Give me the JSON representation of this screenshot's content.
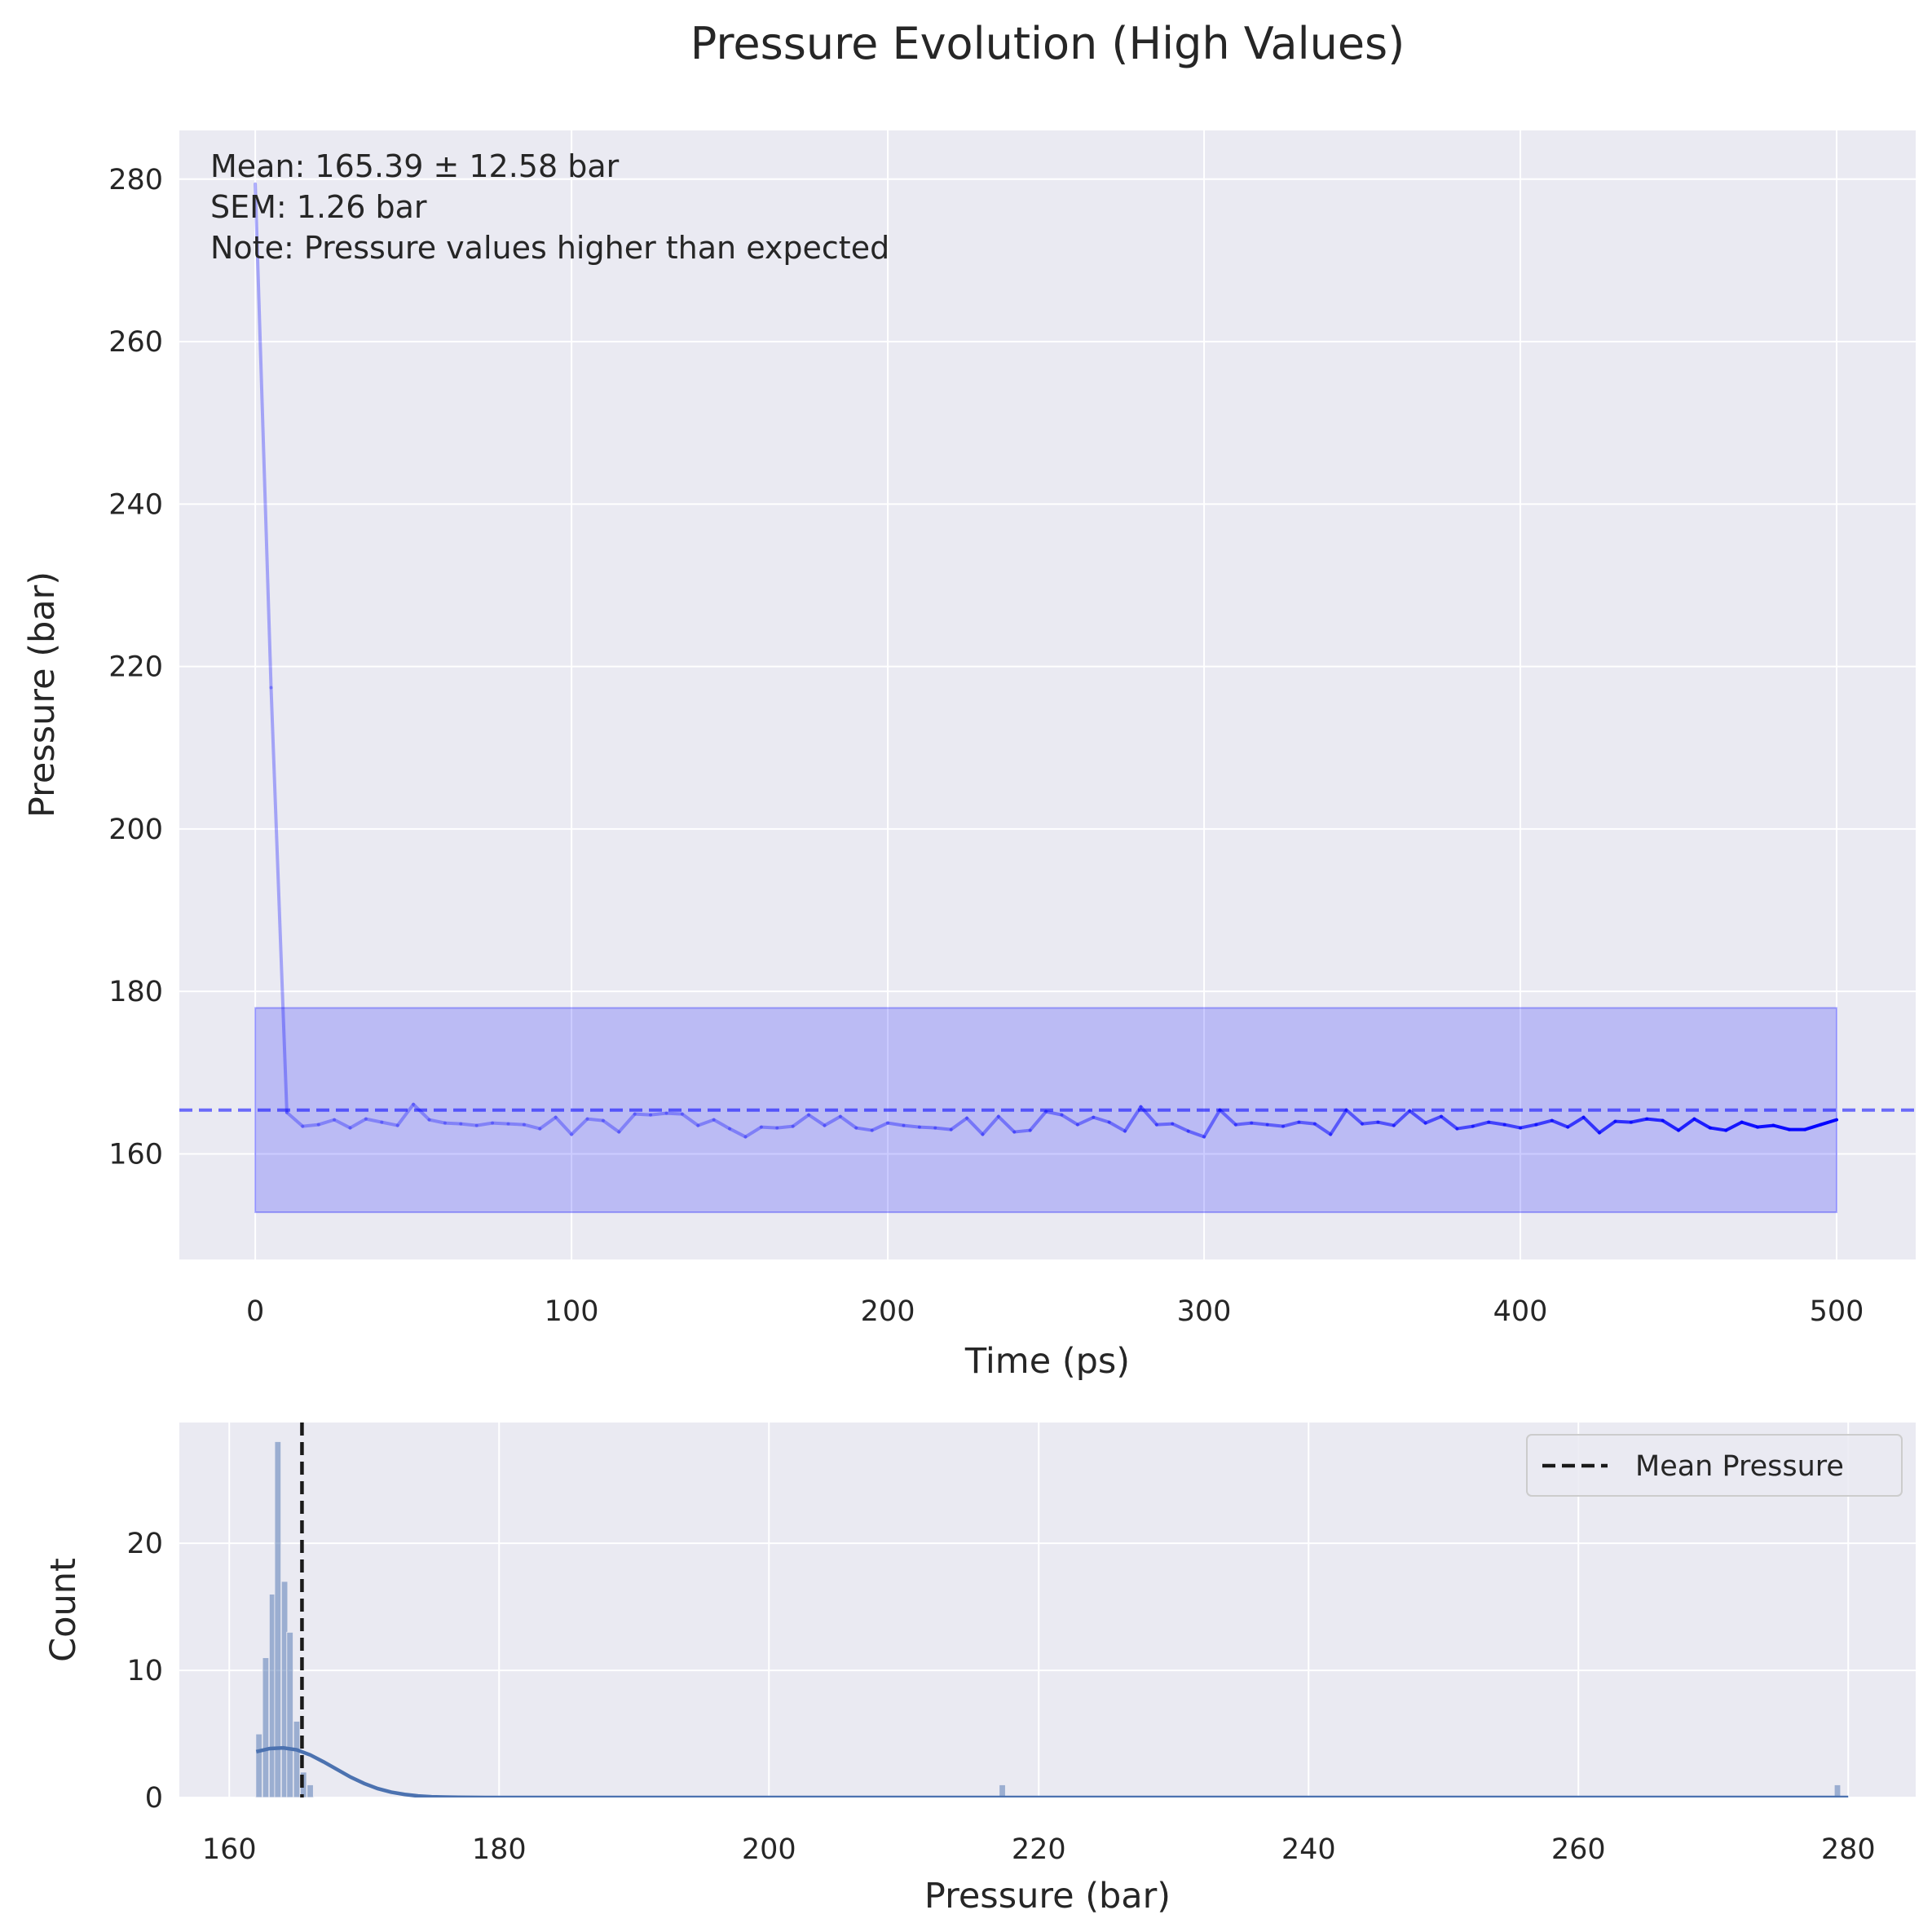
{
  "chart_data": [
    {
      "type": "line",
      "title": "Pressure Evolution (High Values)",
      "xlabel": "Time (ps)",
      "ylabel": "Pressure (bar)",
      "xlim": [
        -24,
        525
      ],
      "ylim": [
        147,
        286
      ],
      "xticks": [
        0,
        100,
        200,
        300,
        400,
        500
      ],
      "yticks": [
        160,
        180,
        200,
        220,
        240,
        260,
        280
      ],
      "grid": true,
      "series": [
        {
          "color": "#0000ff",
          "x": [
            0,
            5,
            10,
            15,
            20,
            25,
            30,
            35,
            40,
            45,
            50,
            55,
            60,
            65,
            70,
            75,
            80,
            85,
            90,
            95,
            100,
            105,
            110,
            115,
            120,
            125,
            130,
            135,
            140,
            145,
            150,
            155,
            160,
            165,
            170,
            175,
            180,
            185,
            190,
            195,
            200,
            205,
            210,
            215,
            220,
            225,
            230,
            235,
            240,
            245,
            250,
            255,
            260,
            265,
            270,
            275,
            280,
            285,
            290,
            295,
            300,
            305,
            310,
            315,
            320,
            325,
            330,
            335,
            340,
            345,
            350,
            355,
            360,
            365,
            370,
            375,
            380,
            385,
            390,
            395,
            400,
            405,
            410,
            415,
            420,
            425,
            430,
            435,
            440,
            445,
            450,
            455,
            460,
            465,
            470,
            475,
            480,
            485,
            490,
            495,
            500
          ],
          "y": [
            279.4,
            217.4,
            165.1,
            163.4,
            163.6,
            164.2,
            163.2,
            164.3,
            163.9,
            163.5,
            166.1,
            164.2,
            163.8,
            163.7,
            163.5,
            163.8,
            163.7,
            163.6,
            163.1,
            164.5,
            162.4,
            164.3,
            164.1,
            162.7,
            164.9,
            164.8,
            165.0,
            164.9,
            163.5,
            164.2,
            163.1,
            162.1,
            163.3,
            163.2,
            163.4,
            164.8,
            163.5,
            164.6,
            163.2,
            162.9,
            163.8,
            163.5,
            163.3,
            163.2,
            163.0,
            164.4,
            162.4,
            164.6,
            162.7,
            162.9,
            165.2,
            164.8,
            163.6,
            164.5,
            163.9,
            162.8,
            165.8,
            163.6,
            163.7,
            162.8,
            162.1,
            165.4,
            163.6,
            163.8,
            163.6,
            163.4,
            163.9,
            163.7,
            162.4,
            165.4,
            163.7,
            163.9,
            163.5,
            165.3,
            163.8,
            164.6,
            163.1,
            163.4,
            163.9,
            163.6,
            163.2,
            163.6,
            164.1,
            163.3,
            164.5,
            162.6,
            164.0,
            163.9,
            164.3,
            164.1,
            162.9,
            164.3,
            163.2,
            162.9,
            163.9,
            163.3,
            163.5,
            163.0,
            163.0,
            163.6,
            164.2
          ]
        }
      ],
      "mean_line": 165.39,
      "std_band": [
        152.81,
        177.97
      ],
      "annotations": [
        "Mean: 165.39 ± 12.58 bar",
        "SEM: 1.26 bar",
        "Note: Pressure values higher than expected"
      ]
    },
    {
      "type": "bar",
      "xlabel": "Pressure (bar)",
      "ylabel": "Count",
      "xlim": [
        156.3,
        285
      ],
      "ylim": [
        0,
        29.5
      ],
      "xticks": [
        160,
        180,
        200,
        220,
        240,
        260,
        280
      ],
      "yticks": [
        0,
        10,
        20
      ],
      "grid": true,
      "bar_color": "#4c72b0",
      "bin_width": 0.47,
      "bin_centers": [
        162.2,
        162.7,
        163.2,
        163.6,
        164.1,
        164.5,
        165.0,
        165.5,
        166.0,
        217.3,
        279.2
      ],
      "counts": [
        5,
        11,
        16,
        28,
        17,
        13,
        6,
        2,
        1,
        1,
        1
      ],
      "kde": {
        "color": "#4c72b0",
        "x": [
          162,
          163,
          164,
          165,
          166,
          167,
          168,
          169,
          170,
          171,
          172,
          173,
          174,
          175,
          176,
          177,
          178,
          179,
          180,
          185,
          190,
          200,
          220,
          240,
          260,
          280
        ],
        "y": [
          3.6,
          3.85,
          3.9,
          3.75,
          3.35,
          2.8,
          2.2,
          1.6,
          1.1,
          0.7,
          0.42,
          0.24,
          0.12,
          0.06,
          0.03,
          0.015,
          0.008,
          0.004,
          0.002,
          0,
          0,
          0,
          0,
          0,
          0,
          0
        ]
      },
      "mean_line": 165.39,
      "legend": {
        "placement": "top-right",
        "entries": [
          "Mean Pressure"
        ]
      }
    }
  ]
}
